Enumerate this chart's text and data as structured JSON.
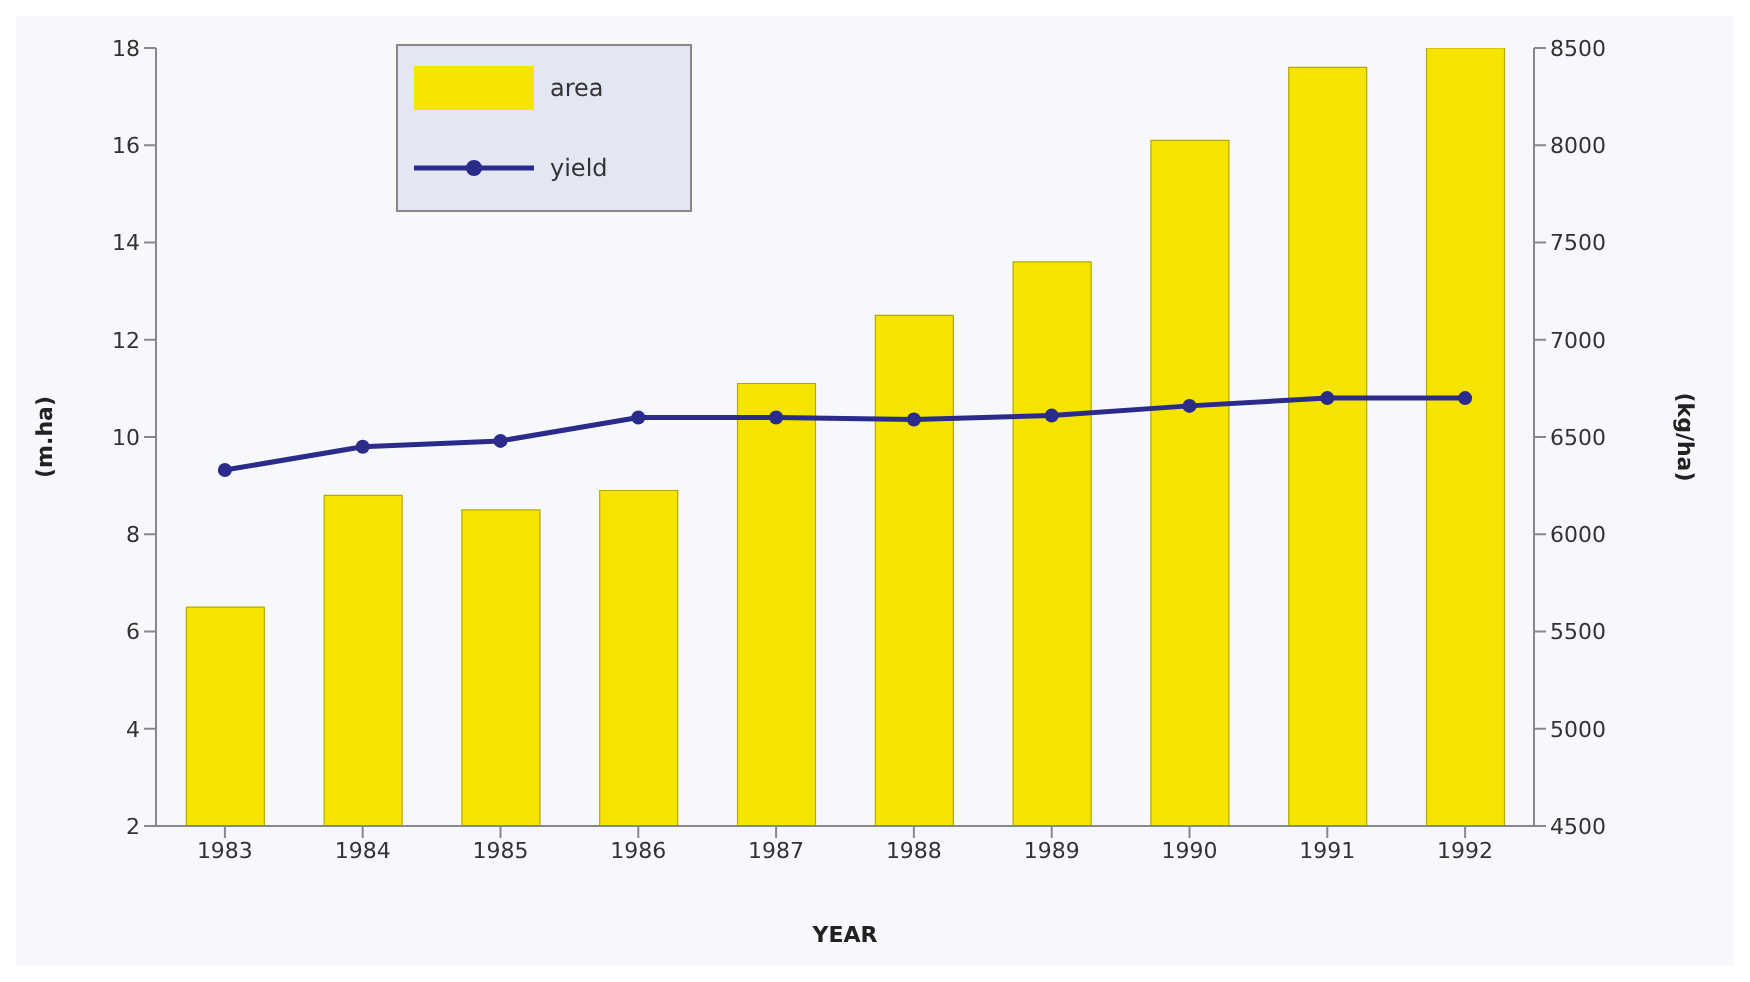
{
  "chart_data": {
    "type": "bar",
    "xlabel": "YEAR",
    "ylabel": "(m.ha)",
    "y2label": "(kg/ha)",
    "categories": [
      "1983",
      "1984",
      "1985",
      "1986",
      "1987",
      "1988",
      "1989",
      "1990",
      "1991",
      "1992"
    ],
    "series": [
      {
        "name": "area",
        "color": "#f5e400",
        "values": [
          6.5,
          8.8,
          8.5,
          8.9,
          11.1,
          12.5,
          13.6,
          16.1,
          17.6,
          18
        ]
      },
      {
        "name": "yield",
        "type": "line",
        "axis": "y2",
        "color": "#2b2b8c",
        "values": [
          6330,
          6450,
          6480,
          6600,
          6600,
          6590,
          6610,
          6660,
          6700,
          6700
        ]
      }
    ],
    "ylim": [
      2,
      18
    ],
    "yticks": [
      2,
      4,
      6,
      8,
      10,
      12,
      14,
      16,
      18
    ],
    "y2lim": [
      4500,
      8500
    ],
    "y2ticks": [
      4500,
      5000,
      5500,
      6000,
      6500,
      7000,
      7500,
      8000,
      8500
    ],
    "grid": false,
    "legend": "top left",
    "marker": "circle",
    "line_style": "solid"
  }
}
